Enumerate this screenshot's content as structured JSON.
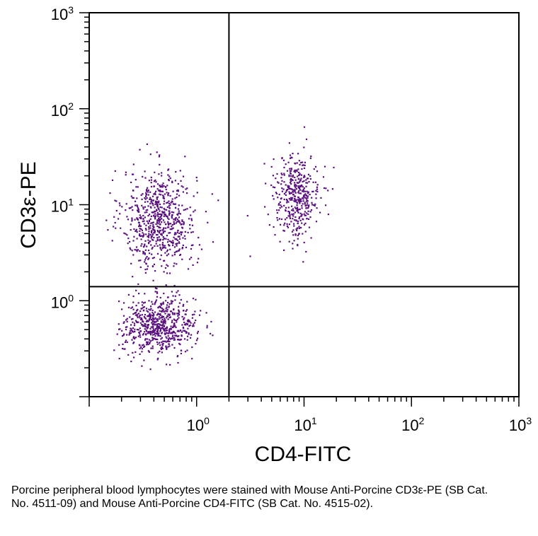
{
  "chart_data": {
    "type": "scatter",
    "xlabel": "CD4-FITC",
    "ylabel": "CD3ε-PE",
    "x_scale": "log",
    "y_scale": "log",
    "xlim": [
      0.1,
      1000
    ],
    "ylim": [
      0.1,
      1000
    ],
    "x_ticks": [
      {
        "base": "10",
        "exp": "0",
        "value": 1
      },
      {
        "base": "10",
        "exp": "1",
        "value": 10
      },
      {
        "base": "10",
        "exp": "2",
        "value": 100
      },
      {
        "base": "10",
        "exp": "3",
        "value": 1000
      }
    ],
    "y_ticks": [
      {
        "base": "10",
        "exp": "0",
        "value": 1
      },
      {
        "base": "10",
        "exp": "1",
        "value": 10
      },
      {
        "base": "10",
        "exp": "2",
        "value": 100
      },
      {
        "base": "10",
        "exp": "3",
        "value": 1000
      }
    ],
    "quadrant_gates": {
      "x": 2.0,
      "y": 1.4
    },
    "point_color": "#5a0f7e",
    "grid": false,
    "populations": [
      {
        "center_x": 0.45,
        "center_y": 7.0,
        "spread_x": 0.17,
        "spread_y": 0.26,
        "count": 700
      },
      {
        "center_x": 0.45,
        "center_y": 0.55,
        "spread_x": 0.17,
        "spread_y": 0.15,
        "count": 650
      },
      {
        "center_x": 8.5,
        "center_y": 12.0,
        "spread_x": 0.11,
        "spread_y": 0.22,
        "count": 420
      }
    ]
  },
  "caption": "Porcine peripheral blood lymphocytes were stained with Mouse Anti-Porcine CD3ε-PE (SB Cat. No. 4511-09) and Mouse Anti-Porcine CD4-FITC (SB Cat. No. 4515-02)."
}
